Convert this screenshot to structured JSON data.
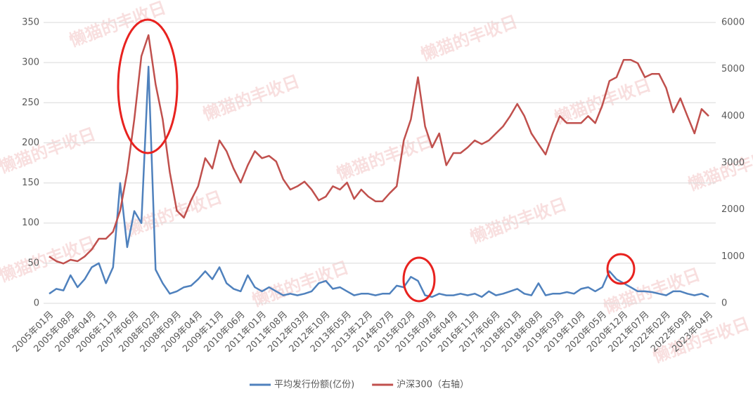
{
  "chart_data": {
    "type": "line",
    "watermark": "懒猫的丰收日",
    "categories": [
      "2005年01月",
      null,
      null,
      "2005年08月",
      null,
      null,
      "2006年04月",
      null,
      null,
      "2006年11月",
      null,
      null,
      "2007年06月",
      null,
      null,
      "2008年02月",
      null,
      null,
      "2008年09月",
      null,
      null,
      "2009年04月",
      null,
      null,
      "2009年11月",
      null,
      null,
      "2010年06月",
      null,
      null,
      "2011年01月",
      null,
      null,
      "2011年08月",
      null,
      null,
      "2012年03月",
      null,
      null,
      "2012年10月",
      null,
      null,
      "2013年05月",
      null,
      null,
      "2013年12月",
      null,
      null,
      "2014年07月",
      null,
      null,
      "2015年02月",
      null,
      null,
      "2015年09月",
      null,
      null,
      "2016年04月",
      null,
      null,
      "2016年11月",
      null,
      null,
      "2017年06月",
      null,
      null,
      "2018年01月",
      null,
      null,
      "2018年08月",
      null,
      null,
      "2019年03月",
      null,
      null,
      "2019年10月",
      null,
      null,
      "2020年05月",
      null,
      null,
      "2020年12月",
      null,
      null,
      "2021年07月",
      null,
      null,
      "2022年02月",
      null,
      null,
      "2022年09月",
      null,
      null,
      "2023年04月"
    ],
    "series": [
      {
        "name": "平均发行份额(亿份)",
        "color": "#4f81bd",
        "axis": "y",
        "values": [
          12,
          18,
          16,
          35,
          20,
          30,
          45,
          50,
          25,
          45,
          150,
          70,
          115,
          100,
          295,
          42,
          25,
          12,
          15,
          20,
          22,
          30,
          40,
          30,
          45,
          25,
          18,
          15,
          35,
          20,
          15,
          20,
          15,
          10,
          12,
          10,
          12,
          15,
          25,
          28,
          18,
          20,
          15,
          10,
          12,
          12,
          10,
          12,
          12,
          22,
          20,
          33,
          28,
          10,
          8,
          12,
          10,
          10,
          12,
          10,
          12,
          8,
          15,
          10,
          12,
          15,
          18,
          12,
          10,
          25,
          10,
          12,
          12,
          14,
          12,
          18,
          20,
          15,
          20,
          40,
          30,
          25,
          20,
          15,
          15,
          14,
          12,
          10,
          15,
          15,
          12,
          10,
          12,
          8
        ]
      },
      {
        "name": "沪深300（右轴）",
        "color": "#c0504d",
        "axis": "y2",
        "values": [
          1000,
          900,
          850,
          930,
          900,
          1000,
          1150,
          1380,
          1380,
          1530,
          1980,
          2800,
          3930,
          5280,
          5730,
          4680,
          3930,
          2800,
          1980,
          1830,
          2200,
          2500,
          3100,
          2880,
          3480,
          3250,
          2880,
          2580,
          2950,
          3250,
          3100,
          3150,
          3030,
          2650,
          2430,
          2500,
          2600,
          2430,
          2200,
          2280,
          2500,
          2430,
          2580,
          2230,
          2430,
          2280,
          2180,
          2180,
          2350,
          2500,
          3480,
          3930,
          4830,
          3780,
          3330,
          3630,
          2950,
          3210,
          3210,
          3330,
          3480,
          3400,
          3480,
          3630,
          3780,
          4000,
          4260,
          4000,
          3630,
          3400,
          3180,
          3630,
          4000,
          3850,
          3850,
          3850,
          4000,
          3850,
          4230,
          4750,
          4830,
          5200,
          5200,
          5130,
          4830,
          4900,
          4900,
          4600,
          4080,
          4380,
          4000,
          3630,
          4150,
          4000
        ]
      }
    ],
    "ylim": [
      0,
      350
    ],
    "yticks": [
      0,
      50,
      100,
      150,
      200,
      250,
      300,
      350
    ],
    "y2lim": [
      0,
      6000
    ],
    "y2ticks": [
      0,
      1000,
      2000,
      3000,
      4000,
      5000,
      6000
    ],
    "grid": true
  }
}
